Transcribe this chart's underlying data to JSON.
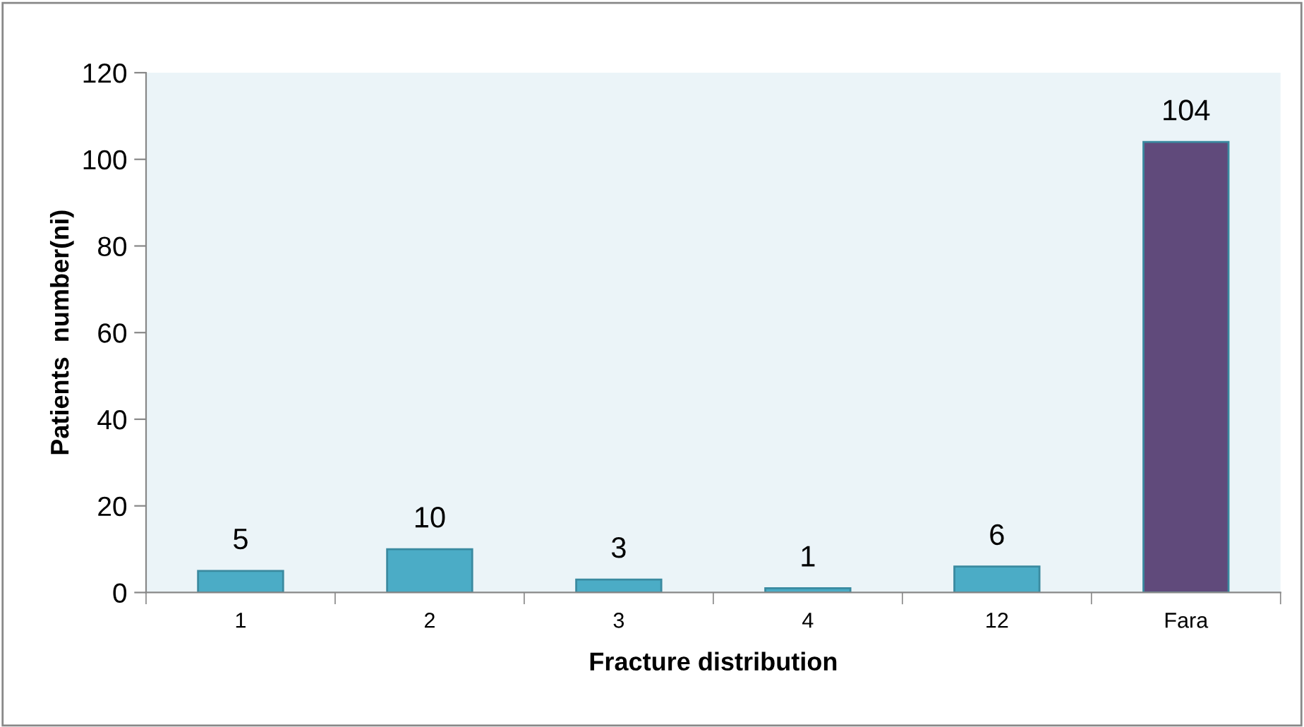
{
  "chart_data": {
    "type": "bar",
    "xlabel": "Fracture distribution",
    "ylabel": "Patients  number(ni)",
    "categories": [
      "1",
      "2",
      "3",
      "4",
      "12",
      "Fara"
    ],
    "values": [
      5,
      10,
      3,
      1,
      6,
      104
    ],
    "colors": [
      "#4bacc6",
      "#4bacc6",
      "#4bacc6",
      "#4bacc6",
      "#4bacc6",
      "#604a7b"
    ],
    "ylim": [
      0,
      120
    ],
    "yticks": [
      0,
      20,
      40,
      60,
      80,
      100,
      120
    ],
    "grid": false,
    "data_labels": true
  }
}
